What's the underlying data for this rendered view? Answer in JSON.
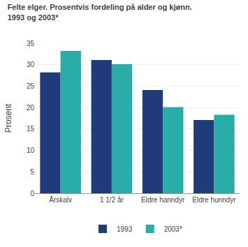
{
  "chart_data": {
    "type": "bar",
    "title": "Felte elger. Prosentvis fordeling på alder og kjønn.",
    "subtitle": "1993 og 2003*",
    "y_label": "Prosent",
    "categories": [
      "Årskalv",
      "1 1/2 år",
      "Eldre hanndyr",
      "Eldre hunndyr"
    ],
    "series": [
      {
        "name": "1993",
        "color": "#1f3b7a",
        "values": [
          28.2,
          31.1,
          24.1,
          17.1
        ]
      },
      {
        "name": "2003*",
        "color": "#2aada8",
        "values": [
          33.2,
          30.1,
          20.1,
          18.3
        ]
      }
    ],
    "ylim": [
      0,
      35
    ],
    "yticks": [
      0,
      5,
      10,
      15,
      20,
      25,
      30,
      35
    ],
    "grid": true,
    "legend": "bottom"
  }
}
